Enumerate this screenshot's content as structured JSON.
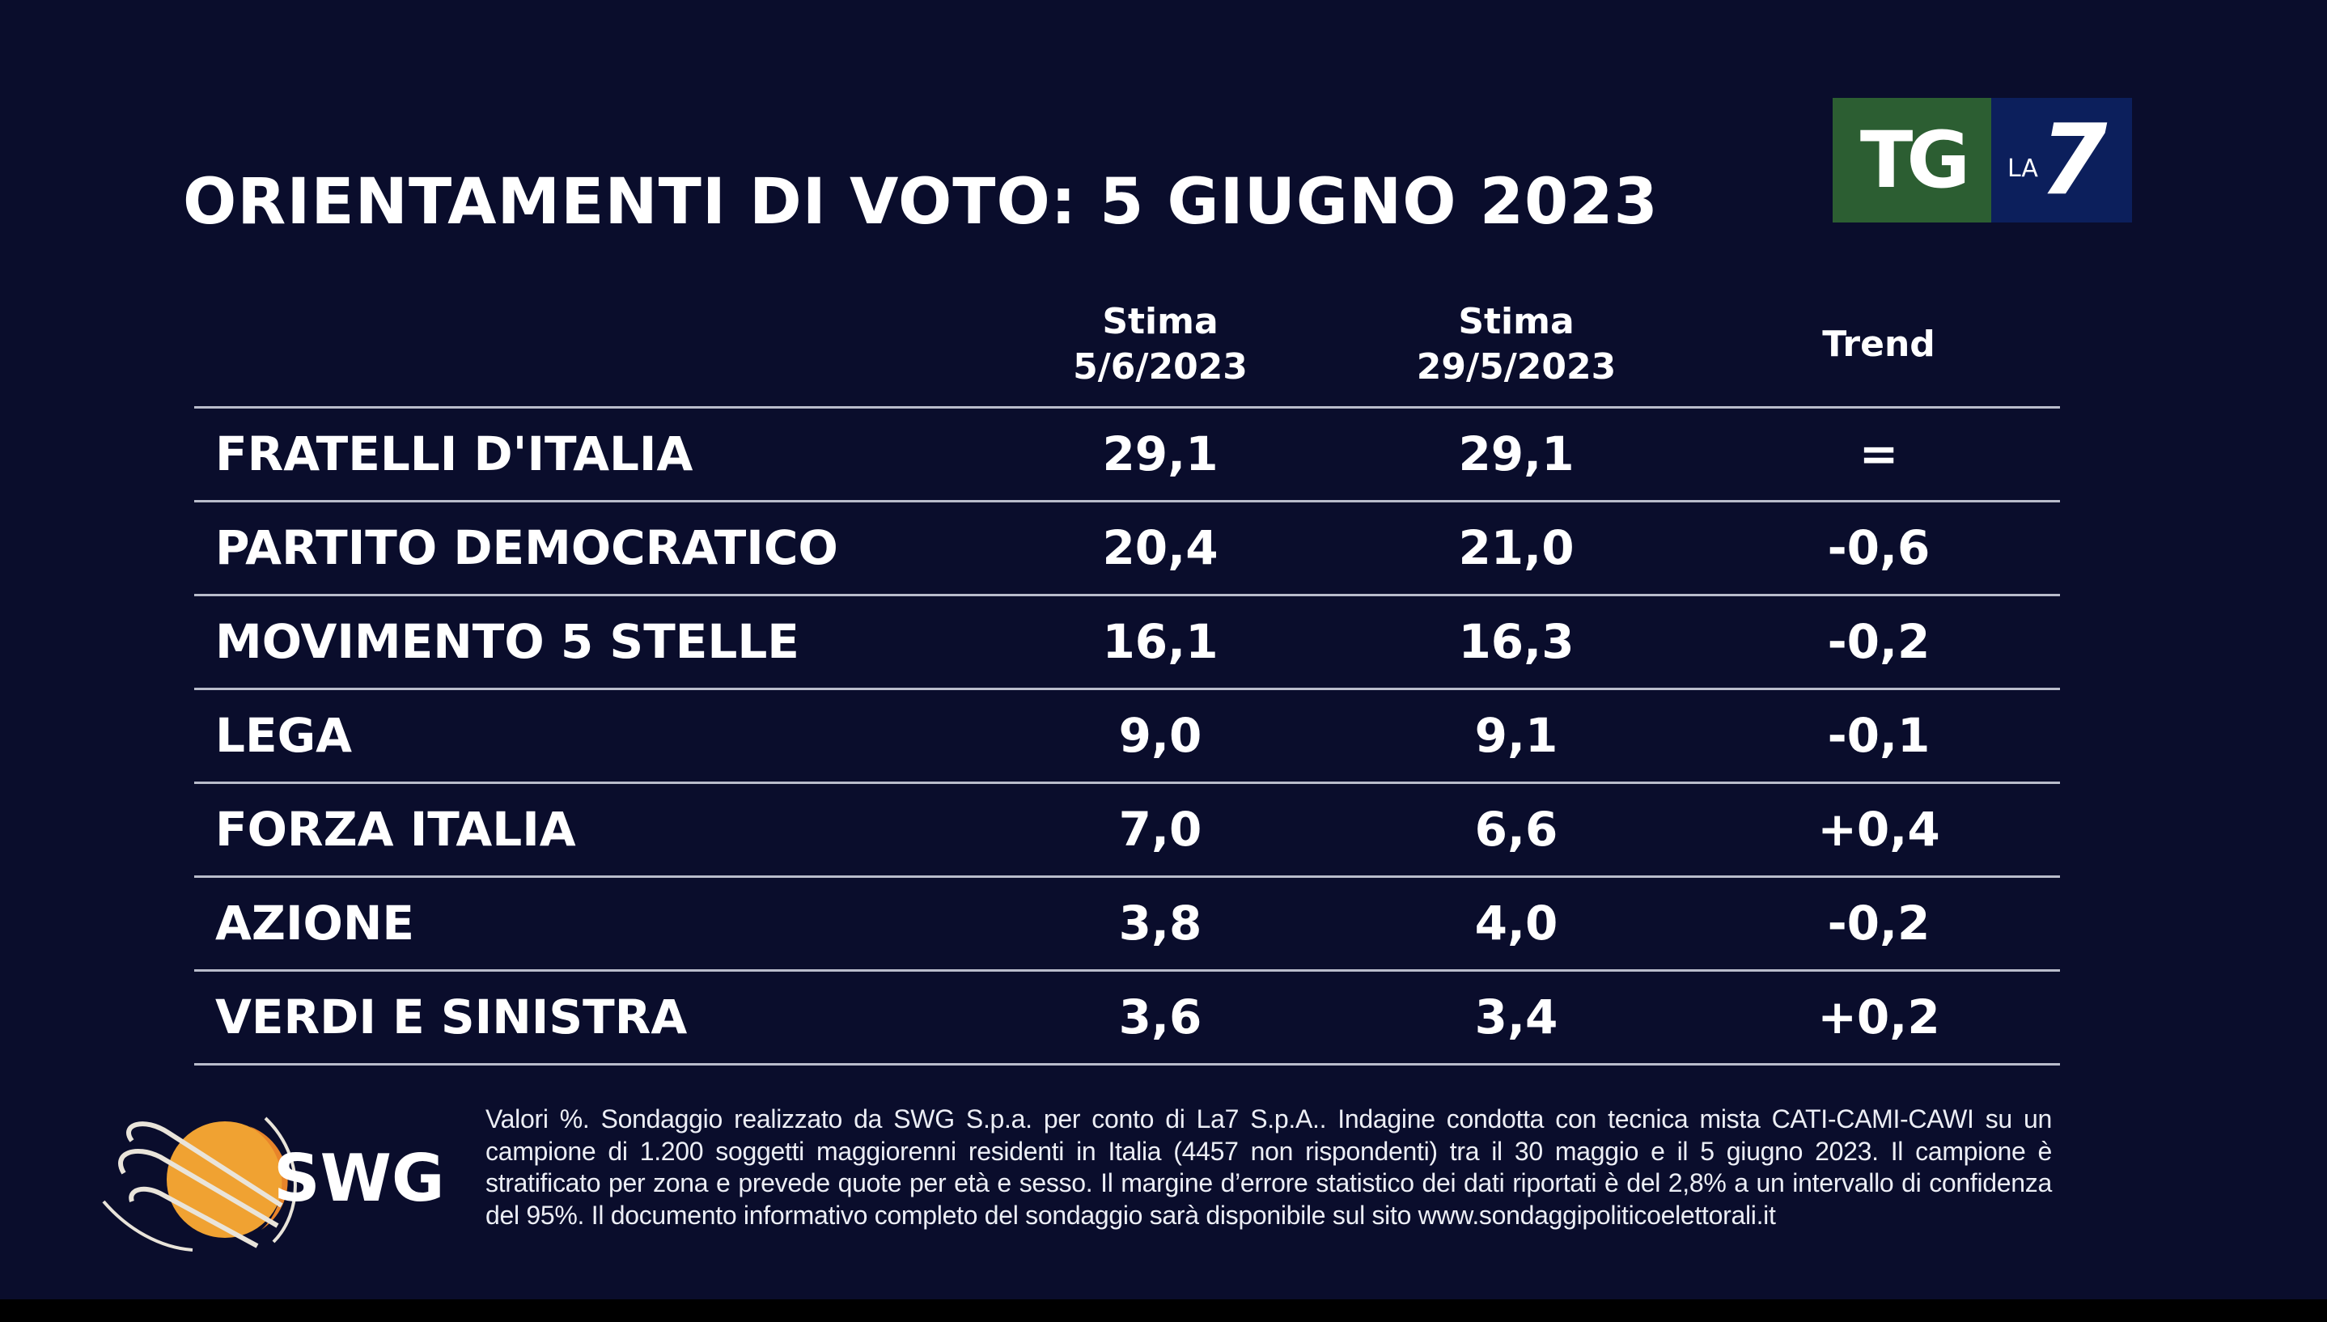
{
  "title": "ORIENTAMENTI DI VOTO: 5 GIUGNO 2023",
  "logo": {
    "tg": "TG",
    "la": "LA",
    "seven": "7",
    "green": "#2c5e32",
    "blue": "#0c1f5c"
  },
  "table": {
    "headers": [
      {
        "line1": "Stima",
        "line2": "5/6/2023"
      },
      {
        "line1": "Stima",
        "line2": "29/5/2023"
      },
      {
        "line1": "Trend",
        "line2": ""
      }
    ],
    "rows": [
      {
        "party": "FRATELLI D'ITALIA",
        "current": "29,1",
        "previous": "29,1",
        "trend": "="
      },
      {
        "party": "PARTITO DEMOCRATICO",
        "current": "20,4",
        "previous": "21,0",
        "trend": "-0,6"
      },
      {
        "party": "MOVIMENTO 5 STELLE",
        "current": "16,1",
        "previous": "16,3",
        "trend": "-0,2"
      },
      {
        "party": "LEGA",
        "current": "9,0",
        "previous": "9,1",
        "trend": "-0,1"
      },
      {
        "party": "FORZA ITALIA",
        "current": "7,0",
        "previous": "6,6",
        "trend": "+0,4"
      },
      {
        "party": "AZIONE",
        "current": "3,8",
        "previous": "4,0",
        "trend": "-0,2"
      },
      {
        "party": "VERDI E SINISTRA",
        "current": "3,6",
        "previous": "3,4",
        "trend": "+0,2"
      }
    ]
  },
  "swg": {
    "name": "SWG",
    "icon": "orange-globe-icon"
  },
  "footnote": "Valori %. Sondaggio realizzato da SWG S.p.a. per conto di La7 S.p.A.. Indagine condotta con tecnica mista CATI-CAMI-CAWI su un campione di 1.200 soggetti maggiorenni residenti in Italia (4457 non rispondenti) tra il 30 maggio e il 5 giugno 2023. Il campione è stratificato per zona e prevede quote per età e sesso. Il margine d’errore statistico dei dati riportati è del 2,8% a un intervallo di confidenza del 95%. Il documento informativo completo del sondaggio sarà disponibile sul sito www.sondaggipoliticoelettorali.it"
}
